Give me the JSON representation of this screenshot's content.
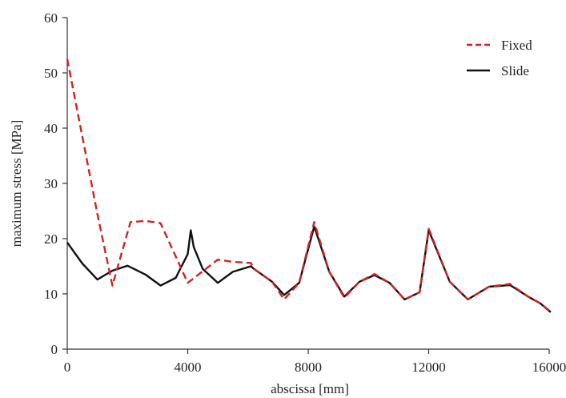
{
  "chart_data": {
    "type": "line",
    "xlabel": "abscissa [mm]",
    "ylabel": "maximum stress [MPa]",
    "xlim": [
      0,
      16000
    ],
    "ylim": [
      0,
      60
    ],
    "xticks": [
      0,
      4000,
      8000,
      12000,
      16000
    ],
    "yticks": [
      0,
      10,
      20,
      30,
      40,
      50,
      60
    ],
    "grid": false,
    "legend_position": "top-right",
    "series": [
      {
        "name": "Fixed",
        "color": "#d42020",
        "dash": "dashed",
        "points": [
          [
            0,
            52.5
          ],
          [
            500,
            38.5
          ],
          [
            1000,
            24.5
          ],
          [
            1500,
            11.5
          ],
          [
            2100,
            23.0
          ],
          [
            2600,
            23.2
          ],
          [
            3100,
            22.8
          ],
          [
            4000,
            12.0
          ],
          [
            5000,
            16.2
          ],
          [
            5500,
            15.8
          ],
          [
            6100,
            15.6
          ],
          [
            6200,
            14.5
          ],
          [
            6800,
            12.2
          ],
          [
            7200,
            9.0
          ],
          [
            7700,
            12.0
          ],
          [
            8200,
            23.0
          ],
          [
            8700,
            14.0
          ],
          [
            9200,
            9.3
          ],
          [
            9700,
            12.2
          ],
          [
            10200,
            13.6
          ],
          [
            10700,
            12.0
          ],
          [
            11200,
            9.0
          ],
          [
            11700,
            10.3
          ],
          [
            12000,
            21.8
          ],
          [
            12700,
            12.2
          ],
          [
            13300,
            9.0
          ],
          [
            14000,
            11.3
          ],
          [
            14700,
            11.8
          ],
          [
            15300,
            9.5
          ],
          [
            15700,
            8.3
          ],
          [
            16050,
            6.8
          ]
        ]
      },
      {
        "name": "Slide",
        "color": "#111111",
        "dash": "solid",
        "points": [
          [
            0,
            19.3
          ],
          [
            500,
            15.5
          ],
          [
            1000,
            12.6
          ],
          [
            1500,
            14.2
          ],
          [
            2000,
            15.1
          ],
          [
            2600,
            13.5
          ],
          [
            3100,
            11.5
          ],
          [
            3600,
            12.9
          ],
          [
            4000,
            17.2
          ],
          [
            4100,
            21.5
          ],
          [
            4200,
            18.5
          ],
          [
            4500,
            14.5
          ],
          [
            5000,
            12.0
          ],
          [
            5500,
            14.0
          ],
          [
            6100,
            15.0
          ],
          [
            6200,
            14.5
          ],
          [
            6800,
            12.2
          ],
          [
            7200,
            9.8
          ],
          [
            7700,
            12.0
          ],
          [
            8200,
            22.2
          ],
          [
            8700,
            14.0
          ],
          [
            9200,
            9.5
          ],
          [
            9700,
            12.2
          ],
          [
            10200,
            13.4
          ],
          [
            10700,
            12.0
          ],
          [
            11200,
            9.0
          ],
          [
            11700,
            10.3
          ],
          [
            12000,
            21.5
          ],
          [
            12700,
            12.2
          ],
          [
            13300,
            9.0
          ],
          [
            14000,
            11.3
          ],
          [
            14700,
            11.6
          ],
          [
            15300,
            9.5
          ],
          [
            15700,
            8.3
          ],
          [
            16050,
            6.7
          ]
        ]
      }
    ]
  }
}
